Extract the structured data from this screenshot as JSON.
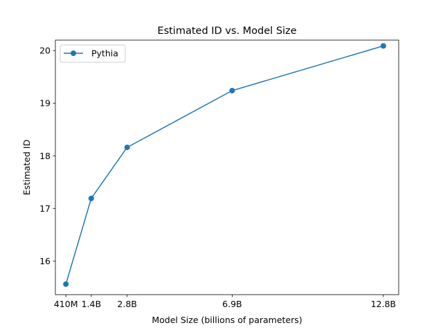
{
  "chart_data": {
    "type": "line",
    "title": "Estimated ID vs. Model Size",
    "xlabel": "Model Size (billions of parameters)",
    "ylabel": "Estimated ID",
    "xlim": [
      0.0,
      13.4
    ],
    "ylim": [
      15.36,
      20.2
    ],
    "x_ticks": [
      {
        "value": 0.41,
        "label": "410M"
      },
      {
        "value": 1.4,
        "label": "1.4B"
      },
      {
        "value": 2.8,
        "label": "2.8B"
      },
      {
        "value": 6.9,
        "label": "6.9B"
      },
      {
        "value": 12.8,
        "label": "12.8B"
      }
    ],
    "y_ticks": [
      {
        "value": 16,
        "label": "16"
      },
      {
        "value": 17,
        "label": "17"
      },
      {
        "value": 18,
        "label": "18"
      },
      {
        "value": 19,
        "label": "19"
      },
      {
        "value": 20,
        "label": "20"
      }
    ],
    "series": [
      {
        "name": "Pythia",
        "color": "#1f77b4",
        "marker": "circle",
        "x": [
          0.41,
          1.4,
          2.8,
          6.9,
          12.8
        ],
        "y": [
          15.56,
          17.19,
          18.16,
          19.24,
          20.09
        ]
      }
    ],
    "legend": "upper-left",
    "grid": false
  }
}
